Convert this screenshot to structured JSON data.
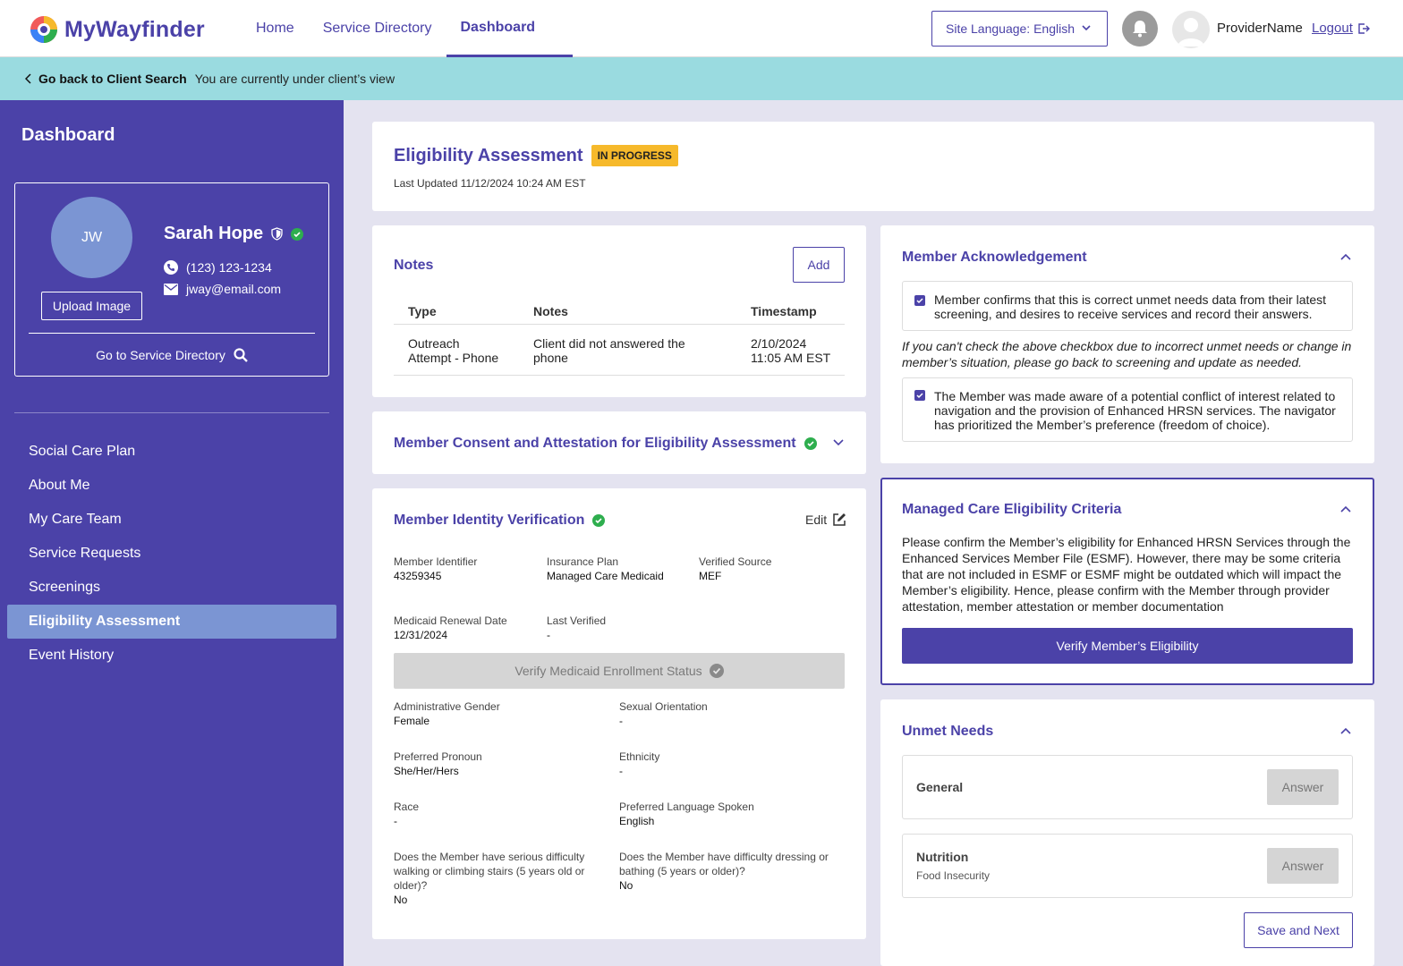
{
  "header": {
    "logo_text": "MyWayfinder",
    "nav": [
      "Home",
      "Service Directory",
      "Dashboard"
    ],
    "language_select": "Site Language: English",
    "provider_name": "ProviderName",
    "logout": "Logout"
  },
  "banner": {
    "back_label": "Go back to Client Search",
    "view_text": "You are currently under client’s view"
  },
  "sidebar": {
    "title": "Dashboard",
    "profile": {
      "initials": "JW",
      "name": "Sarah Hope",
      "phone": "(123) 123-1234",
      "email": "jway@email.com",
      "upload_label": "Upload Image",
      "go_service_label": "Go to Service Directory"
    },
    "menu": [
      "Social Care Plan",
      "About Me",
      "My Care Team",
      "Service Requests",
      "Screenings",
      "Eligibility Assessment",
      "Event History"
    ],
    "active_index": 5
  },
  "assessment": {
    "title": "Eligibility Assessment",
    "status": "IN PROGRESS",
    "last_updated": "Last Updated 11/12/2024 10:24 AM EST"
  },
  "notes": {
    "title": "Notes",
    "add_label": "Add",
    "columns": [
      "Type",
      "Notes",
      "Timestamp"
    ],
    "rows": [
      {
        "type_line1": "Outreach",
        "type_line2": "Attempt - Phone",
        "note_line1": "Client did not answered the",
        "note_line2": "phone",
        "time_line1": "2/10/2024",
        "time_line2": "11:05 AM EST"
      }
    ]
  },
  "consent": {
    "title": "Member Consent and Attestation for Eligibility Assessment"
  },
  "identity": {
    "title": "Member Identity Verification",
    "edit_label": "Edit",
    "member_identifier_label": "Member Identifier",
    "member_identifier": "43259345",
    "insurance_plan_label": "Insurance Plan",
    "insurance_plan": "Managed Care Medicaid",
    "verified_source_label": "Verified Source",
    "verified_source": "MEF",
    "renewal_label": "Medicaid Renewal Date",
    "renewal": "12/31/2024",
    "last_verified_label": "Last Verified",
    "last_verified": "-",
    "verify_button": "Verify Medicaid Enrollment Status",
    "gender_label": "Administrative Gender",
    "gender": "Female",
    "orientation_label": "Sexual Orientation",
    "orientation": "-",
    "pronoun_label": "Preferred Pronoun",
    "pronoun": "She/Her/Hers",
    "ethnicity_label": "Ethnicity",
    "ethnicity": "-",
    "race_label": "Race",
    "race": "-",
    "language_label": "Preferred Language Spoken",
    "language": "English",
    "walking_q1": "Does the Member have serious difficulty",
    "walking_q2": "walking or climbing stairs (5 years old or",
    "walking_q3": "older)?",
    "walking_a": "No",
    "dressing_q1": "Does the Member have difficulty dressing or",
    "dressing_q2": "bathing (5 years or older)?",
    "dressing_a": "No"
  },
  "acknowledgement": {
    "title": "Member Acknowledgement",
    "check1_l1": "Member confirms that this is correct unmet needs data from their latest",
    "check1_l2": "screening, and desires to receive services and record their answers.",
    "note_l1": "If you can't check the above checkbox due to incorrect unmet needs or change in",
    "note_l2": "member’s situation, please go back to screening and update as needed.",
    "check2_l1": "The Member was made aware of a potential conflict of interest related to",
    "check2_l2": "navigation and the provision of Enhanced HRSN services. The navigator",
    "check2_l3": "has prioritized the Member’s preference (freedom of choice)."
  },
  "managed_care": {
    "title": "Managed Care Eligibility Criteria",
    "p_l1": "Please confirm the Member’s eligibility for Enhanced HRSN Services through the",
    "p_l2": "Enhanced Services Member File (ESMF). However, there may be some criteria",
    "p_l3": "that are not included in ESMF or ESMF might be outdated which will impact the",
    "p_l4": "Member’s eligibility. Hence, please confirm with the Member through provider",
    "p_l5": "attestation, member attestation or member documentation",
    "verify_button": "Verify Member’s Eligibility"
  },
  "unmet_needs": {
    "title": "Unmet Needs",
    "items": [
      {
        "name": "General",
        "sub": "",
        "action": "Answer"
      },
      {
        "name": "Nutrition",
        "sub": "Food Insecurity",
        "action": "Answer"
      }
    ],
    "save_next": "Save and Next"
  },
  "colors": {
    "brand": "#4b42a8",
    "banner": "#9adbe0",
    "badge": "#f6b92b",
    "success": "#2eae4e",
    "avatar": "#7b95d3"
  }
}
